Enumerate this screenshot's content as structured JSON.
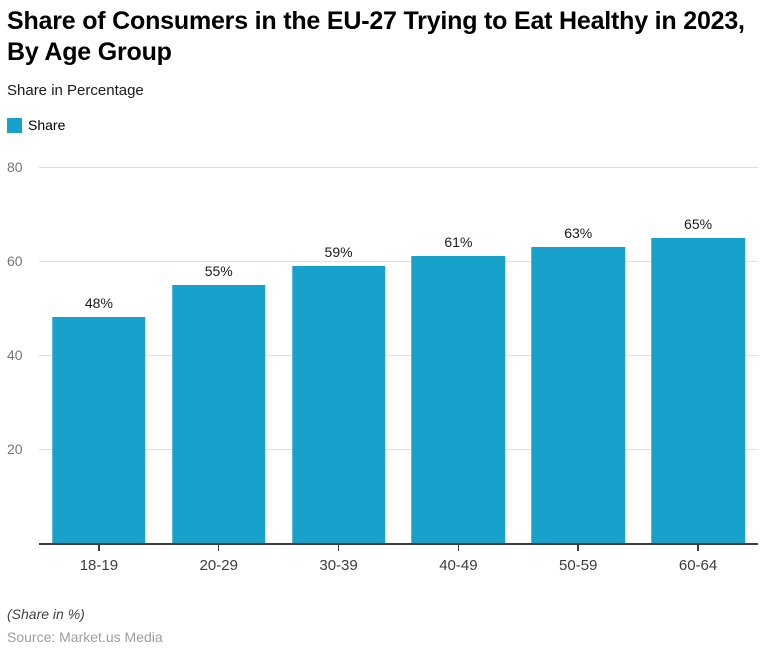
{
  "chart_data": {
    "type": "bar",
    "title": "Share of Consumers in the EU-27 Trying to Eat Healthy in 2023, By Age Group",
    "subtitle": "Share in Percentage",
    "legend": [
      {
        "label": "Share",
        "color": "#18a2cb"
      }
    ],
    "legend_position": "top-left",
    "categories": [
      "18-19",
      "20-29",
      "30-39",
      "40-49",
      "50-59",
      "60-64"
    ],
    "values": [
      48,
      55,
      59,
      61,
      63,
      65
    ],
    "value_labels": [
      "48%",
      "55%",
      "59%",
      "61%",
      "63%",
      "65%"
    ],
    "xlabel": "",
    "ylabel": "Share",
    "ylim": [
      0,
      80
    ],
    "yticks": [
      20,
      40,
      60,
      80
    ],
    "grid": true
  },
  "colors": {
    "bar": "#18a2cb",
    "gridline": "#e0e0e0",
    "axis_line": "#3c3c3c",
    "ytick_text": "#757575",
    "xtick_text": "#3d3d3d",
    "source_text": "#9e9e9e"
  },
  "footer": {
    "note": "(Share in %)",
    "source": "Source: Market.us Media"
  }
}
